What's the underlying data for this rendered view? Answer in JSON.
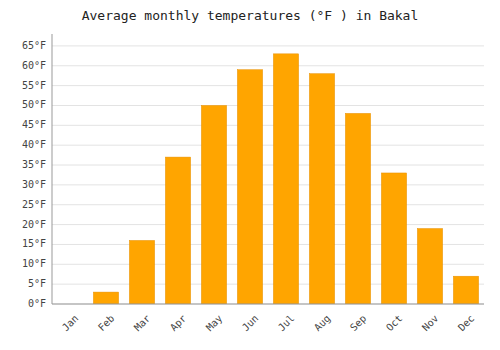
{
  "chart_data": {
    "type": "bar",
    "title": "Average monthly temperatures (°F ) in Bakal",
    "categories": [
      "Jan",
      "Feb",
      "Mar",
      "Apr",
      "May",
      "Jun",
      "Jul",
      "Aug",
      "Sep",
      "Oct",
      "Nov",
      "Dec"
    ],
    "values": [
      0,
      3,
      16,
      37,
      50,
      59,
      63,
      58,
      48,
      33,
      19,
      7
    ],
    "color": "#FFA500",
    "ylim": [
      0,
      68
    ],
    "yticks": [
      {
        "value": 0,
        "label": "0°F"
      },
      {
        "value": 5,
        "label": "5°F"
      },
      {
        "value": 10,
        "label": "10°F"
      },
      {
        "value": 15,
        "label": "15°F"
      },
      {
        "value": 20,
        "label": "20°F"
      },
      {
        "value": 25,
        "label": "25°F"
      },
      {
        "value": 30,
        "label": "30°F"
      },
      {
        "value": 35,
        "label": "35°F"
      },
      {
        "value": 40,
        "label": "40°F"
      },
      {
        "value": 45,
        "label": "45°F"
      },
      {
        "value": 50,
        "label": "50°F"
      },
      {
        "value": 55,
        "label": "55°F"
      },
      {
        "value": 60,
        "label": "60°F"
      },
      {
        "value": 65,
        "label": "65°F"
      }
    ],
    "grid": true
  }
}
